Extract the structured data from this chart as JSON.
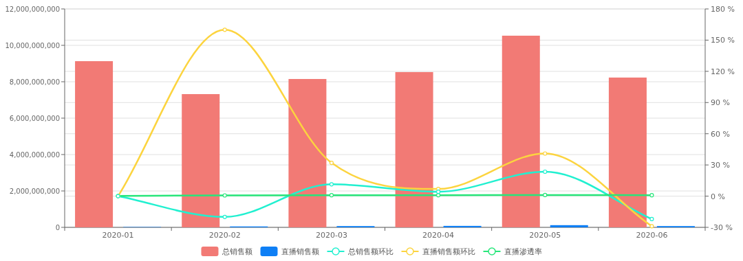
{
  "chart_data": {
    "type": "bar",
    "categories": [
      "2020-01",
      "2020-02",
      "2020-03",
      "2020-04",
      "2020-05",
      "2020-06"
    ],
    "series": [
      {
        "name": "总销售额",
        "color": "#f27a75",
        "values": [
          9130000000,
          7320000000,
          8150000000,
          8530000000,
          10530000000,
          8230000000
        ]
      },
      {
        "name": "直播销售额",
        "color": "#0e7ff5",
        "values": [
          20000000,
          50000000,
          70000000,
          80000000,
          120000000,
          70000000
        ]
      },
      {
        "name": "总销售额环比",
        "type": "line",
        "axis": "y2",
        "color": "#21f0d0",
        "values": [
          0,
          -20,
          11.4,
          4.2,
          23.5,
          -22
        ]
      },
      {
        "name": "直播销售额环比",
        "type": "line",
        "axis": "y2",
        "color": "#fcd43f",
        "values": [
          0,
          160,
          32,
          6.9,
          41,
          -28.9
        ]
      },
      {
        "name": "直播渗透率",
        "type": "line",
        "axis": "y2",
        "color": "#27e67a",
        "values": [
          0.2,
          0.7,
          0.9,
          0.9,
          1.1,
          0.9
        ]
      }
    ],
    "ylim": [
      0,
      12000000000
    ],
    "yticks": [
      0,
      {
        "value": 2000000000,
        "label": "2,000,000,000"
      },
      {
        "value": 4000000000,
        "label": "4,000,000,000"
      },
      {
        "value": 6000000000,
        "label": "6,000,000,000"
      },
      {
        "value": 8000000000,
        "label": "8,000,000,000"
      },
      {
        "value": 10000000000,
        "label": "10,000,000,000"
      },
      {
        "value": 12000000000,
        "label": "12,000,000,000"
      }
    ],
    "y2lim": [
      -30,
      180
    ],
    "y2ticks": [
      {
        "value": -30,
        "label": "-30 %"
      },
      {
        "value": 0,
        "label": "0 %"
      },
      {
        "value": 30,
        "label": "30 %"
      },
      {
        "value": 60,
        "label": "60 %"
      },
      {
        "value": 90,
        "label": "90 %"
      },
      {
        "value": 120,
        "label": "120 %"
      },
      {
        "value": 150,
        "label": "150 %"
      },
      {
        "value": 180,
        "label": "180 %"
      }
    ],
    "grid": true,
    "legend": "bottom",
    "marker": "circle",
    "line_style": "solid"
  }
}
